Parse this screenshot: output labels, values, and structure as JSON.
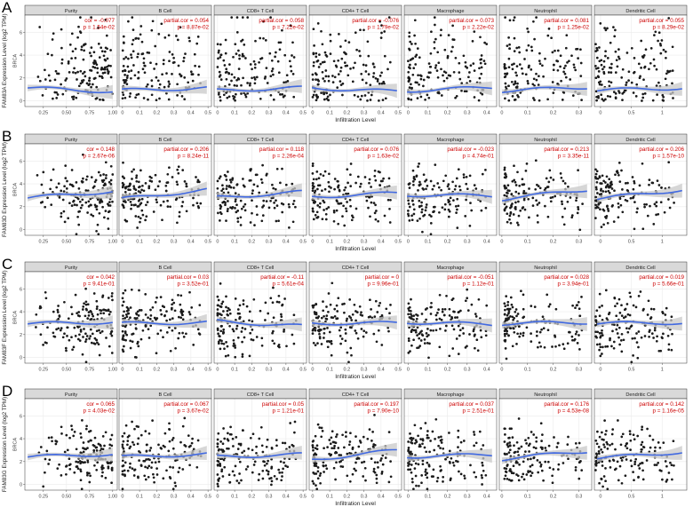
{
  "figure": {
    "panels": [
      {
        "letter": "A",
        "ylabel": "FAM83A Expression Level (log2 TPM)",
        "xlabel": "Infiltration Level",
        "yticks": [
          "0",
          "2",
          "4",
          "6"
        ],
        "ylim": [
          -0.5,
          7.5
        ],
        "fit_level": 1.0,
        "cells": [
          {
            "name": "Purity",
            "stat1": "cor = -0.077",
            "stat2": "p = 1.54e-02",
            "xticks": [
              "0.25",
              "0.50",
              "0.75",
              "1.00"
            ],
            "xlim": [
              0.05,
              1.05
            ]
          },
          {
            "name": "B Cell",
            "stat1": "partial.cor = 0.054",
            "stat2": "p = 8.87e-02",
            "xticks": [
              "0",
              "0.1",
              "0.2",
              "0.3",
              "0.4",
              "0.5"
            ],
            "xlim": [
              -0.02,
              0.52
            ]
          },
          {
            "name": "CD8+ T Cell",
            "stat1": "partial.cor = 0.058",
            "stat2": "p = 7.22e-02",
            "xticks": [
              "0",
              "0.1",
              "0.2",
              "0.3",
              "0.4",
              "0.5"
            ],
            "xlim": [
              -0.02,
              0.52
            ]
          },
          {
            "name": "CD4+ T Cell",
            "stat1": "partial.cor = -0.076",
            "stat2": "p = 1.79e-02",
            "xticks": [
              "0",
              "0.1",
              "0.2",
              "0.3",
              "0.4",
              "0.5"
            ],
            "xlim": [
              -0.02,
              0.52
            ]
          },
          {
            "name": "Macrophage",
            "stat1": "partial.cor = 0.073",
            "stat2": "p = 2.22e-02",
            "xticks": [
              "0",
              "0.1",
              "0.2",
              "0.3",
              "0.4"
            ],
            "xlim": [
              -0.02,
              0.45
            ]
          },
          {
            "name": "Neutrophil",
            "stat1": "partial.cor = 0.081",
            "stat2": "p = 1.25e-02",
            "xticks": [
              "0",
              "0.1",
              "0.2",
              "0.3"
            ],
            "xlim": [
              -0.01,
              0.35
            ]
          },
          {
            "name": "Dendritic Cell",
            "stat1": "partial.cor = 0.055",
            "stat2": "p = 8.29e-02",
            "xticks": [
              "0",
              "0.5",
              "1"
            ],
            "xlim": [
              -0.1,
              1.4
            ]
          }
        ]
      },
      {
        "letter": "B",
        "ylabel": "FAM83D Expression Level (log2 TPM)",
        "xlabel": "Infiltration Level",
        "yticks": [
          "0",
          "2",
          "4",
          "6"
        ],
        "ylim": [
          -0.5,
          7.5
        ],
        "fit_level": 3.0,
        "cells": [
          {
            "name": "Purity",
            "stat1": "cor = 0.148",
            "stat2": "p = 2.67e-06",
            "xticks": [
              "0.25",
              "0.50",
              "0.75",
              "1.00"
            ],
            "xlim": [
              0.05,
              1.05
            ]
          },
          {
            "name": "B Cell",
            "stat1": "partial.cor = 0.206",
            "stat2": "p = 8.24e-11",
            "xticks": [
              "0",
              "0.1",
              "0.2",
              "0.3",
              "0.4",
              "0.5"
            ],
            "xlim": [
              -0.02,
              0.52
            ]
          },
          {
            "name": "CD8+ T Cell",
            "stat1": "partial.cor = 0.118",
            "stat2": "p = 2.26e-04",
            "xticks": [
              "0",
              "0.1",
              "0.2",
              "0.3",
              "0.4",
              "0.5"
            ],
            "xlim": [
              -0.02,
              0.52
            ]
          },
          {
            "name": "CD4+ T Cell",
            "stat1": "partial.cor = 0.076",
            "stat2": "p = 1.63e-02",
            "xticks": [
              "0",
              "0.1",
              "0.2",
              "0.3",
              "0.4",
              "0.5"
            ],
            "xlim": [
              -0.02,
              0.52
            ]
          },
          {
            "name": "Macrophage",
            "stat1": "partial.cor = -0.023",
            "stat2": "p = 4.74e-01",
            "xticks": [
              "0",
              "0.1",
              "0.2",
              "0.3",
              "0.4"
            ],
            "xlim": [
              -0.02,
              0.45
            ]
          },
          {
            "name": "Neutrophil",
            "stat1": "partial.cor = 0.213",
            "stat2": "p = 3.35e-11",
            "xticks": [
              "0",
              "0.1",
              "0.2",
              "0.3"
            ],
            "xlim": [
              -0.01,
              0.35
            ]
          },
          {
            "name": "Dendritic Cell",
            "stat1": "partial.cor = 0.206",
            "stat2": "p = 1.57e-10",
            "xticks": [
              "0",
              "0.5",
              "1"
            ],
            "xlim": [
              -0.1,
              1.4
            ]
          }
        ]
      },
      {
        "letter": "C",
        "ylabel": "FAM83F Expression Level (log2 TPM)",
        "xlabel": "Infiltration Level",
        "yticks": [
          "0",
          "2",
          "4",
          "6"
        ],
        "ylim": [
          -0.5,
          7.5
        ],
        "fit_level": 3.0,
        "cells": [
          {
            "name": "Purity",
            "stat1": "cor = 0.042",
            "stat2": "p = 9.41e-01",
            "xticks": [
              "0.25",
              "0.50",
              "0.75",
              "1.00"
            ],
            "xlim": [
              0.05,
              1.05
            ]
          },
          {
            "name": "B Cell",
            "stat1": "partial.cor = 0.03",
            "stat2": "p = 3.52e-01",
            "xticks": [
              "0",
              "0.1",
              "0.2",
              "0.3",
              "0.4",
              "0.5"
            ],
            "xlim": [
              -0.02,
              0.52
            ]
          },
          {
            "name": "CD8+ T Cell",
            "stat1": "partial.cor = -0.11",
            "stat2": "p = 5.61e-04",
            "xticks": [
              "0",
              "0.1",
              "0.2",
              "0.3",
              "0.4",
              "0.5"
            ],
            "xlim": [
              -0.02,
              0.52
            ]
          },
          {
            "name": "CD4+ T Cell",
            "stat1": "partial.cor = 0",
            "stat2": "p = 9.96e-01",
            "xticks": [
              "0",
              "0.1",
              "0.2",
              "0.3",
              "0.4",
              "0.5"
            ],
            "xlim": [
              -0.02,
              0.52
            ]
          },
          {
            "name": "Macrophage",
            "stat1": "partial.cor = -0.051",
            "stat2": "p = 1.12e-01",
            "xticks": [
              "0",
              "0.1",
              "0.2",
              "0.3",
              "0.4"
            ],
            "xlim": [
              -0.02,
              0.45
            ]
          },
          {
            "name": "Neutrophil",
            "stat1": "partial.cor = 0.028",
            "stat2": "p = 3.94e-01",
            "xticks": [
              "0",
              "0.1",
              "0.2",
              "0.3"
            ],
            "xlim": [
              -0.01,
              0.35
            ]
          },
          {
            "name": "Dendritic Cell",
            "stat1": "partial.cor = 0.019",
            "stat2": "p = 5.66e-01",
            "xticks": [
              "0",
              "0.5",
              "1"
            ],
            "xlim": [
              -0.1,
              1.4
            ]
          }
        ]
      },
      {
        "letter": "D",
        "ylabel": "FAM83G Expression Level (log2 TPM)",
        "xlabel": "Infiltration Level",
        "yticks": [
          "0",
          "2",
          "4",
          "6"
        ],
        "ylim": [
          -0.5,
          7.5
        ],
        "fit_level": 2.5,
        "cells": [
          {
            "name": "Purity",
            "stat1": "cor = 0.065",
            "stat2": "p = 4.03e-02",
            "xticks": [
              "0.25",
              "0.50",
              "0.75",
              "1.00"
            ],
            "xlim": [
              0.05,
              1.05
            ]
          },
          {
            "name": "B Cell",
            "stat1": "partial.cor = 0.067",
            "stat2": "p = 3.67e-02",
            "xticks": [
              "0",
              "0.1",
              "0.2",
              "0.3",
              "0.4",
              "0.5"
            ],
            "xlim": [
              -0.02,
              0.52
            ]
          },
          {
            "name": "CD8+ T Cell",
            "stat1": "partial.cor = 0.05",
            "stat2": "p = 1.21e-01",
            "xticks": [
              "0",
              "0.1",
              "0.2",
              "0.3",
              "0.4",
              "0.5"
            ],
            "xlim": [
              -0.02,
              0.52
            ]
          },
          {
            "name": "CD4+ T Cell",
            "stat1": "partial.cor = 0.197",
            "stat2": "p = 7.90e-10",
            "xticks": [
              "0",
              "0.1",
              "0.2",
              "0.3",
              "0.4",
              "0.5"
            ],
            "xlim": [
              -0.02,
              0.52
            ]
          },
          {
            "name": "Macrophage",
            "stat1": "partial.cor = 0.037",
            "stat2": "p = 2.51e-01",
            "xticks": [
              "0",
              "0.1",
              "0.2",
              "0.3",
              "0.4"
            ],
            "xlim": [
              -0.02,
              0.45
            ]
          },
          {
            "name": "Neutrophil",
            "stat1": "partial.cor = 0.176",
            "stat2": "p = 4.53e-08",
            "xticks": [
              "0",
              "0.1",
              "0.2",
              "0.3"
            ],
            "xlim": [
              -0.01,
              0.35
            ]
          },
          {
            "name": "Dendritic Cell",
            "stat1": "partial.cor = 0.142",
            "stat2": "p = 1.16e-05",
            "xticks": [
              "0",
              "0.5",
              "1"
            ],
            "xlim": [
              -0.1,
              1.4
            ]
          }
        ]
      }
    ],
    "side_label": "BRCA",
    "colors": {
      "points": "#1a1a1a",
      "fit": "#4169e1",
      "ribbon": "#c8c8c8",
      "stat": "#cc0000",
      "strip": "#d9d9d9",
      "border": "#333333",
      "grid": "#ebebeb"
    }
  },
  "chart_data": {
    "type": "scatter",
    "title": "",
    "facets": [
      "Purity",
      "B Cell",
      "CD8+ T Cell",
      "CD4+ T Cell",
      "Macrophage",
      "Neutrophil",
      "Dendritic Cell"
    ],
    "xlabel": "Infiltration Level",
    "ylabels": [
      "FAM83A Expression Level (log2 TPM)",
      "FAM83D Expression Level (log2 TPM)",
      "FAM83F Expression Level (log2 TPM)",
      "FAM83G Expression Level (log2 TPM)"
    ],
    "tumor": "BRCA",
    "grid": true,
    "series": [
      {
        "gene": "FAM83A",
        "cor": [
          -0.077,
          0.054,
          0.058,
          -0.076,
          0.073,
          0.081,
          0.055
        ],
        "p": [
          "1.54e-02",
          "8.87e-02",
          "7.22e-02",
          "1.79e-02",
          "2.22e-02",
          "1.25e-02",
          "8.29e-02"
        ]
      },
      {
        "gene": "FAM83D",
        "cor": [
          0.148,
          0.206,
          0.118,
          0.076,
          -0.023,
          0.213,
          0.206
        ],
        "p": [
          "2.67e-06",
          "8.24e-11",
          "2.26e-04",
          "1.63e-02",
          "4.74e-01",
          "3.35e-11",
          "1.57e-10"
        ]
      },
      {
        "gene": "FAM83F",
        "cor": [
          0.042,
          0.03,
          -0.11,
          0,
          -0.051,
          0.028,
          0.019
        ],
        "p": [
          "9.41e-01",
          "3.52e-01",
          "5.61e-04",
          "9.96e-01",
          "1.12e-01",
          "3.94e-01",
          "5.66e-01"
        ]
      },
      {
        "gene": "FAM83G",
        "cor": [
          0.065,
          0.067,
          0.05,
          0.197,
          0.037,
          0.176,
          0.142
        ],
        "p": [
          "4.03e-02",
          "3.67e-02",
          "1.21e-01",
          "7.90e-10",
          "2.51e-01",
          "4.53e-08",
          "1.16e-05"
        ]
      }
    ]
  }
}
